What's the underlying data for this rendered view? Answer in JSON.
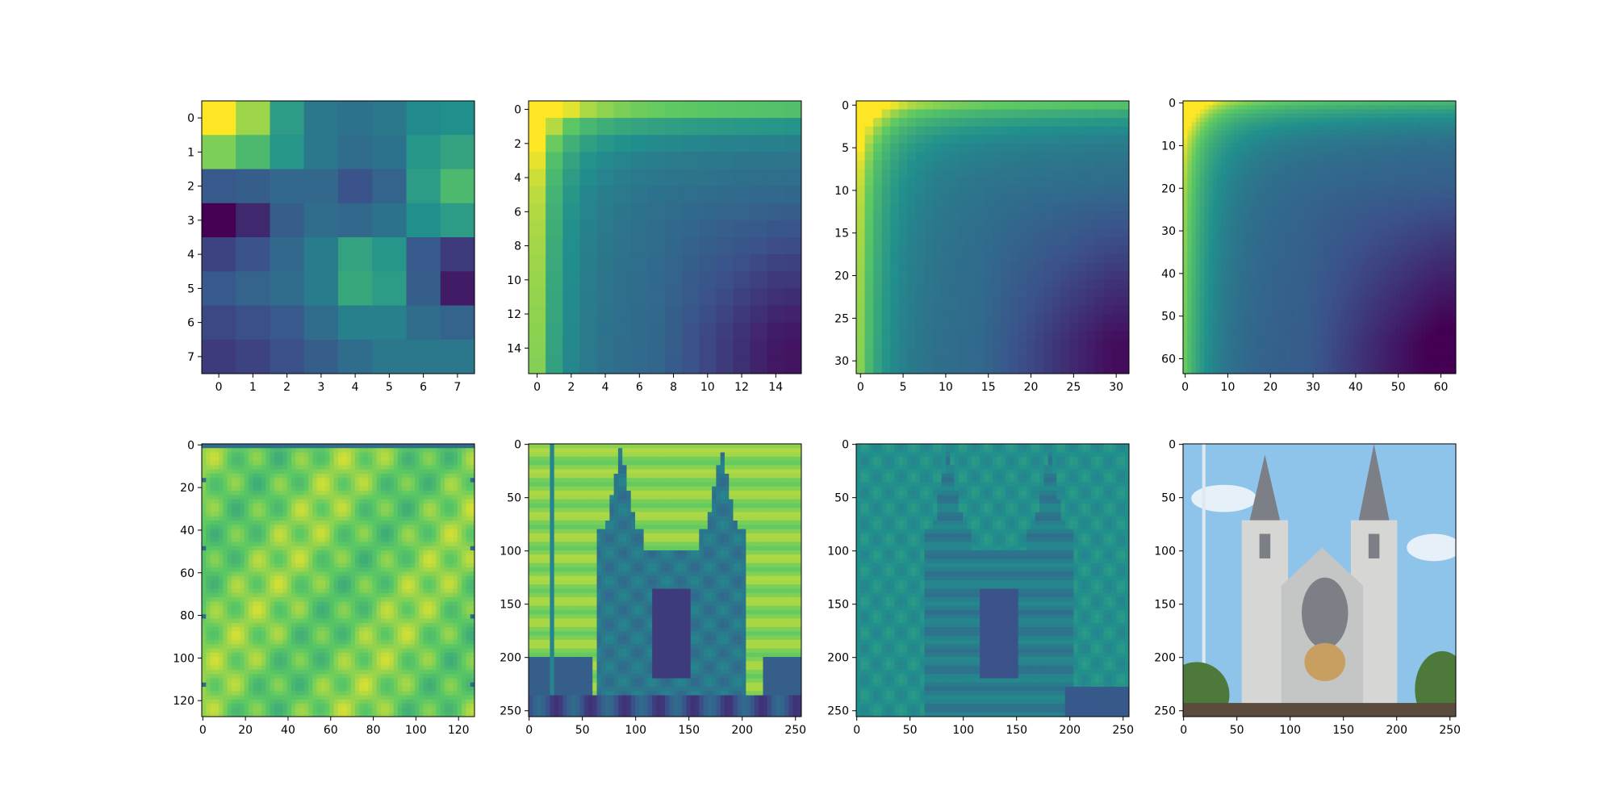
{
  "figure": {
    "description_free": true,
    "colormap": "viridis",
    "colormap_stops": [
      "#440154",
      "#3b528b",
      "#21908d",
      "#5dc963",
      "#fde725"
    ]
  },
  "chart_data": [
    {
      "type": "heatmap",
      "grid_size": 8,
      "xlim": [
        -0.5,
        7.5
      ],
      "ylim": [
        7.5,
        -0.5
      ],
      "xticks": [
        0,
        1,
        2,
        3,
        4,
        5,
        6,
        7
      ],
      "yticks": [
        0,
        1,
        2,
        3,
        4,
        5,
        6,
        7
      ],
      "xtick_labels": [
        "0",
        "1",
        "2",
        "3",
        "4",
        "5",
        "6",
        "7"
      ],
      "ytick_labels": [
        "0",
        "1",
        "2",
        "3",
        "4",
        "5",
        "6",
        "7"
      ],
      "values": [
        [
          1.0,
          0.85,
          0.55,
          0.4,
          0.38,
          0.4,
          0.48,
          0.5
        ],
        [
          0.8,
          0.68,
          0.52,
          0.4,
          0.36,
          0.38,
          0.52,
          0.58
        ],
        [
          0.28,
          0.3,
          0.34,
          0.34,
          0.26,
          0.32,
          0.55,
          0.68
        ],
        [
          0.0,
          0.12,
          0.3,
          0.36,
          0.34,
          0.38,
          0.5,
          0.55
        ],
        [
          0.2,
          0.26,
          0.34,
          0.42,
          0.58,
          0.52,
          0.28,
          0.18
        ],
        [
          0.28,
          0.32,
          0.36,
          0.42,
          0.6,
          0.55,
          0.3,
          0.08
        ],
        [
          0.22,
          0.24,
          0.28,
          0.36,
          0.44,
          0.44,
          0.36,
          0.32
        ],
        [
          0.18,
          0.2,
          0.24,
          0.3,
          0.36,
          0.4,
          0.4,
          0.4
        ]
      ]
    },
    {
      "type": "heatmap",
      "grid_size": 16,
      "xlim": [
        -0.5,
        15.5
      ],
      "ylim": [
        15.5,
        -0.5
      ],
      "xticks": [
        0,
        2,
        4,
        6,
        8,
        10,
        12,
        14
      ],
      "yticks": [
        0,
        2,
        4,
        6,
        8,
        10,
        12,
        14
      ],
      "xtick_labels": [
        "0",
        "2",
        "4",
        "6",
        "8",
        "10",
        "12",
        "14"
      ],
      "ytick_labels": [
        "0",
        "2",
        "4",
        "6",
        "8",
        "10",
        "12",
        "14"
      ]
    },
    {
      "type": "heatmap",
      "grid_size": 32,
      "xlim": [
        -0.5,
        31.5
      ],
      "ylim": [
        31.5,
        -0.5
      ],
      "xticks": [
        0,
        5,
        10,
        15,
        20,
        25,
        30
      ],
      "yticks": [
        0,
        5,
        10,
        15,
        20,
        25,
        30
      ],
      "xtick_labels": [
        "0",
        "5",
        "10",
        "15",
        "20",
        "25",
        "30"
      ],
      "ytick_labels": [
        "0",
        "5",
        "10",
        "15",
        "20",
        "25",
        "30"
      ]
    },
    {
      "type": "heatmap",
      "grid_size": 64,
      "xlim": [
        -0.5,
        63.5
      ],
      "ylim": [
        63.5,
        -0.5
      ],
      "xticks": [
        0,
        10,
        20,
        30,
        40,
        50,
        60
      ],
      "yticks": [
        0,
        10,
        20,
        30,
        40,
        50,
        60
      ],
      "xtick_labels": [
        "0",
        "10",
        "20",
        "30",
        "40",
        "50",
        "60"
      ],
      "ytick_labels": [
        "0",
        "10",
        "20",
        "30",
        "40",
        "50",
        "60"
      ]
    },
    {
      "type": "heatmap",
      "grid_size": 128,
      "xlim": [
        -0.5,
        127.5
      ],
      "ylim": [
        127.5,
        -0.5
      ],
      "xticks": [
        0,
        20,
        40,
        60,
        80,
        100,
        120
      ],
      "yticks": [
        0,
        20,
        40,
        60,
        80,
        100,
        120
      ],
      "xtick_labels": [
        "0",
        "20",
        "40",
        "60",
        "80",
        "100",
        "120"
      ],
      "ytick_labels": [
        "0",
        "20",
        "40",
        "60",
        "80",
        "100",
        "120"
      ]
    },
    {
      "type": "heatmap",
      "grid_size": 256,
      "xlim": [
        -0.5,
        255.5
      ],
      "ylim": [
        255.5,
        -0.5
      ],
      "xticks": [
        0,
        50,
        100,
        150,
        200,
        250
      ],
      "yticks": [
        0,
        50,
        100,
        150,
        200,
        250
      ],
      "xtick_labels": [
        "0",
        "50",
        "100",
        "150",
        "200",
        "250"
      ],
      "ytick_labels": [
        "0",
        "50",
        "100",
        "150",
        "200",
        "250"
      ]
    },
    {
      "type": "heatmap",
      "grid_size": 256,
      "xlim": [
        -0.5,
        255.5
      ],
      "ylim": [
        255.5,
        -0.5
      ],
      "xticks": [
        0,
        50,
        100,
        150,
        200,
        250
      ],
      "yticks": [
        0,
        50,
        100,
        150,
        200,
        250
      ],
      "xtick_labels": [
        "0",
        "50",
        "100",
        "150",
        "200",
        "250"
      ],
      "ytick_labels": [
        "0",
        "50",
        "100",
        "150",
        "200",
        "250"
      ]
    },
    {
      "type": "image",
      "grid_size": 256,
      "xlim": [
        -0.5,
        255.5
      ],
      "ylim": [
        255.5,
        -0.5
      ],
      "xticks": [
        0,
        50,
        100,
        150,
        200,
        250
      ],
      "yticks": [
        0,
        50,
        100,
        150,
        200,
        250
      ],
      "xtick_labels": [
        "0",
        "50",
        "100",
        "150",
        "200",
        "250"
      ],
      "ytick_labels": [
        "0",
        "50",
        "100",
        "150",
        "200",
        "250"
      ],
      "colors": {
        "sky": "#8ec3ea",
        "stone": "#d6d6d4",
        "shadow": "#7d7f86",
        "foliage": "#4d7a3a",
        "window": "#c89f60"
      }
    }
  ]
}
